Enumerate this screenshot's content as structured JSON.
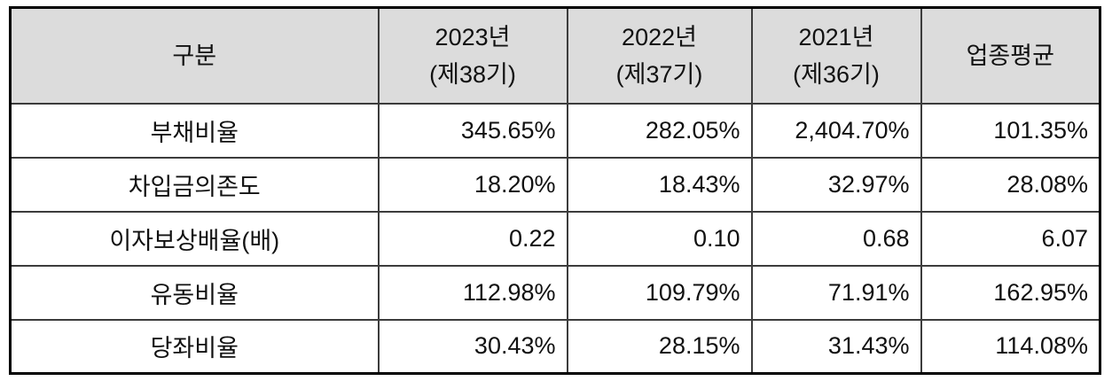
{
  "table": {
    "header": {
      "category": "구분",
      "columns": [
        {
          "year": "2023년",
          "period": "(제38기)"
        },
        {
          "year": "2022년",
          "period": "(제37기)"
        },
        {
          "year": "2021년",
          "period": "(제36기)"
        },
        {
          "year": "업종평균",
          "period": ""
        }
      ]
    },
    "rows": [
      {
        "label": "부채비율",
        "values": [
          "345.65%",
          "282.05%",
          "2,404.70%",
          "101.35%"
        ]
      },
      {
        "label": "차입금의존도",
        "values": [
          "18.20%",
          "18.43%",
          "32.97%",
          "28.08%"
        ]
      },
      {
        "label": "이자보상배율(배)",
        "values": [
          "0.22",
          "0.10",
          "0.68",
          "6.07"
        ]
      },
      {
        "label": "유동비율",
        "values": [
          "112.98%",
          "109.79%",
          "71.91%",
          "162.95%"
        ]
      },
      {
        "label": "당좌비율",
        "values": [
          "30.43%",
          "28.15%",
          "31.43%",
          "114.08%"
        ]
      }
    ],
    "colors": {
      "header_background": "#dcdcdc",
      "outer_border": "#000000",
      "inner_border": "#3c3c3c",
      "text": "#111111",
      "page_background": "#ffffff"
    }
  }
}
